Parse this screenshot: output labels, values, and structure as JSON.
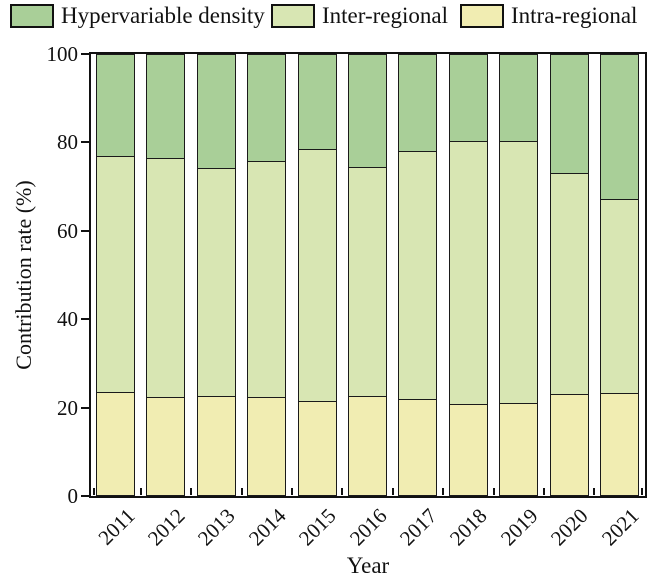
{
  "chart_data": {
    "type": "bar",
    "stacked": true,
    "orientation": "vertical",
    "title": "",
    "xlabel": "Year",
    "ylabel": "Contribution rate (%)",
    "ylim": [
      0,
      100
    ],
    "yticks": [
      0,
      20,
      40,
      60,
      80,
      100
    ],
    "grid": false,
    "legend_position": "top",
    "bar_outline_color": "#1a1a1a",
    "categories": [
      "2011",
      "2012",
      "2013",
      "2014",
      "2015",
      "2016",
      "2017",
      "2018",
      "2019",
      "2020",
      "2021"
    ],
    "series": [
      {
        "name": "Intra-regional",
        "color": "#f1edb2",
        "values": [
          23.2,
          22.2,
          22.4,
          22.1,
          21.2,
          22.3,
          21.7,
          20.6,
          20.8,
          22.9,
          23.0
        ]
      },
      {
        "name": "Inter-regional",
        "color": "#d8e6b3",
        "values": [
          53.8,
          54.3,
          51.7,
          53.6,
          57.3,
          52.2,
          56.3,
          59.7,
          59.6,
          50.1,
          44.1
        ]
      },
      {
        "name": "Hypervariable density",
        "color": "#a9cf98",
        "values": [
          23.0,
          23.5,
          25.9,
          24.3,
          21.5,
          25.5,
          22.0,
          19.7,
          19.6,
          27.0,
          32.9
        ]
      }
    ],
    "legend_order": [
      "Hypervariable density",
      "Inter-regional",
      "Intra-regional"
    ]
  }
}
